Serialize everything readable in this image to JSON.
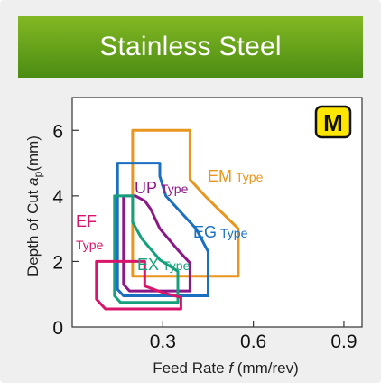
{
  "banner": {
    "title": "Stainless Steel"
  },
  "badge": {
    "text": "M",
    "fill": "#ffe600"
  },
  "chart_data": {
    "type": "area",
    "title": "Stainless Steel",
    "xlabel": "Feed Rate f (mm/rev)",
    "ylabel": "Depth of Cut ap (mm)",
    "xlim": [
      0,
      0.96
    ],
    "ylim": [
      0,
      7
    ],
    "xticks": [
      "0.3",
      "0.6",
      "0.9"
    ],
    "xtick_values": [
      0.3,
      0.6,
      0.9
    ],
    "yticks": [
      "0",
      "2",
      "4",
      "6"
    ],
    "ytick_values": [
      0,
      2,
      4,
      6
    ],
    "origin_label": "0",
    "grid": false,
    "series": [
      {
        "name": "EM",
        "suffix": "Type",
        "color": "#e8961e",
        "polygon": [
          [
            0.2,
            6.0
          ],
          [
            0.39,
            6.0
          ],
          [
            0.39,
            4.5
          ],
          [
            0.44,
            4.0
          ],
          [
            0.55,
            3.0
          ],
          [
            0.55,
            1.55
          ],
          [
            0.2,
            1.55
          ]
        ]
      },
      {
        "name": "EG",
        "suffix": "Type",
        "color": "#1a6fc0",
        "polygon": [
          [
            0.15,
            5.0
          ],
          [
            0.29,
            5.0
          ],
          [
            0.29,
            4.6
          ],
          [
            0.31,
            4.0
          ],
          [
            0.41,
            3.0
          ],
          [
            0.45,
            2.3
          ],
          [
            0.45,
            0.95
          ],
          [
            0.17,
            0.95
          ],
          [
            0.15,
            1.15
          ]
        ]
      },
      {
        "name": "UP",
        "suffix": "Type",
        "color": "#8c1888",
        "polygon": [
          [
            0.17,
            4.0
          ],
          [
            0.21,
            4.0
          ],
          [
            0.24,
            3.85
          ],
          [
            0.26,
            3.6
          ],
          [
            0.29,
            3.0
          ],
          [
            0.35,
            2.35
          ],
          [
            0.39,
            1.95
          ],
          [
            0.39,
            1.1
          ],
          [
            0.19,
            1.1
          ],
          [
            0.17,
            1.3
          ]
        ]
      },
      {
        "name": "EX",
        "suffix": "Type",
        "color": "#15a07c",
        "polygon": [
          [
            0.14,
            4.0
          ],
          [
            0.2,
            4.0
          ],
          [
            0.2,
            3.2
          ],
          [
            0.23,
            2.7
          ],
          [
            0.29,
            2.05
          ],
          [
            0.35,
            1.7
          ],
          [
            0.35,
            0.75
          ],
          [
            0.16,
            0.75
          ],
          [
            0.14,
            0.95
          ]
        ]
      },
      {
        "name": "EF",
        "color": "#d8156b",
        "suffix": "Type",
        "polygon": [
          [
            0.08,
            2.0
          ],
          [
            0.24,
            2.0
          ],
          [
            0.24,
            1.25
          ],
          [
            0.3,
            1.05
          ],
          [
            0.36,
            0.9
          ],
          [
            0.36,
            0.55
          ],
          [
            0.11,
            0.55
          ],
          [
            0.08,
            0.85
          ]
        ]
      }
    ]
  }
}
